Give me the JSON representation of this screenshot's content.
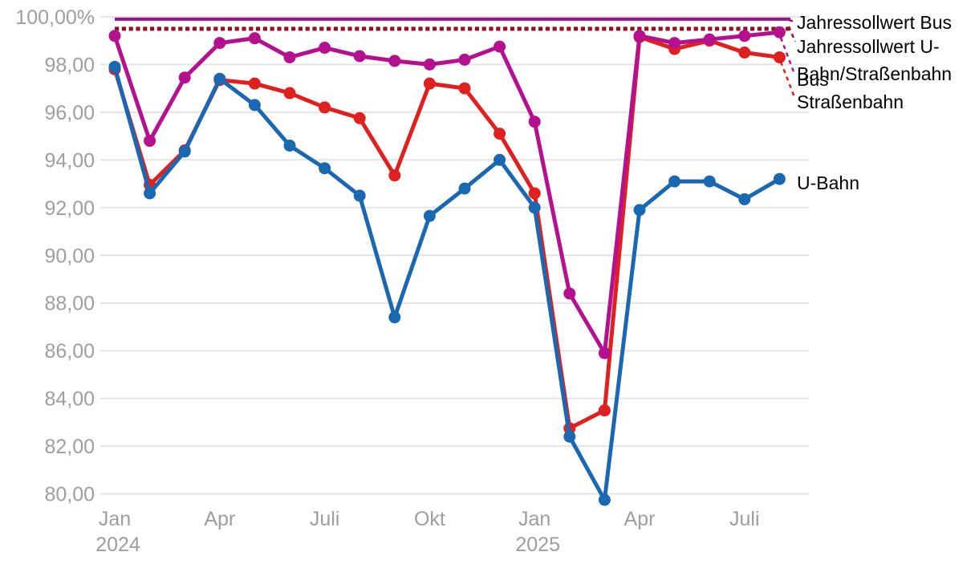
{
  "chart_data": {
    "type": "line",
    "title": "",
    "unit": "%",
    "x": [
      "Jan 2024",
      "Feb 2024",
      "Mär 2024",
      "Apr 2024",
      "Mai 2024",
      "Jun 2024",
      "Jul 2024",
      "Aug 2024",
      "Sep 2024",
      "Okt 2024",
      "Nov 2024",
      "Dez 2024",
      "Jan 2025",
      "Feb 2025",
      "Mär 2025",
      "Apr 2025",
      "Mai 2025",
      "Jun 2025",
      "Jul 2025",
      "Aug 2025"
    ],
    "y_axis": {
      "min": 80,
      "max": 100,
      "step": 2,
      "grid": true,
      "tick_labels": [
        "100,00%",
        "98,00",
        "96,00",
        "94,00",
        "92,00",
        "90,00",
        "88,00",
        "86,00",
        "84,00",
        "82,00",
        "80,00"
      ]
    },
    "x_axis": {
      "ticks": [
        {
          "month_index": 0,
          "line1": "Jan",
          "line2": "2024"
        },
        {
          "month_index": 3,
          "line1": "Apr",
          "line2": ""
        },
        {
          "month_index": 6,
          "line1": "Juli",
          "line2": ""
        },
        {
          "month_index": 9,
          "line1": "Okt",
          "line2": ""
        },
        {
          "month_index": 12,
          "line1": "Jan",
          "line2": "2025"
        },
        {
          "month_index": 15,
          "line1": "Apr",
          "line2": ""
        },
        {
          "month_index": 18,
          "line1": "Juli",
          "line2": ""
        }
      ]
    },
    "series": [
      {
        "name": "Straßenbahn",
        "color": "#e01f1f",
        "values": [
          97.8,
          92.95,
          94.4,
          97.35,
          97.2,
          96.8,
          96.2,
          95.75,
          93.35,
          97.2,
          97.0,
          95.1,
          92.6,
          82.75,
          83.5,
          99.15,
          98.65,
          99.0,
          98.5,
          98.3
        ]
      },
      {
        "name": "U-Bahn",
        "color": "#1a68b2",
        "values": [
          97.9,
          92.6,
          94.35,
          97.4,
          96.3,
          94.6,
          93.65,
          92.5,
          87.4,
          91.65,
          92.8,
          94.0,
          92.0,
          82.4,
          79.75,
          91.9,
          93.1,
          93.1,
          92.35,
          93.2
        ]
      },
      {
        "name": "Bus",
        "color": "#b5108f",
        "values": [
          99.2,
          94.8,
          97.45,
          98.9,
          99.1,
          98.3,
          98.7,
          98.35,
          98.15,
          98.0,
          98.2,
          98.75,
          95.6,
          88.4,
          85.9,
          99.2,
          98.9,
          99.05,
          99.2,
          99.35
        ]
      }
    ],
    "reference_lines": [
      {
        "name": "Jahressollwert Bus",
        "value": 99.9,
        "style": "solid",
        "color": "#941685"
      },
      {
        "name": "Jahressollwert U-Bahn/Straßenbahn",
        "value": 99.7,
        "style": "dotted",
        "color": "#8e1423"
      }
    ],
    "end_labels": [
      {
        "id": "jahressollwert-bus",
        "text": "Jahressollwert Bus",
        "lines": [
          "Jahressollwert Bus"
        ],
        "y": 28,
        "leader_color": "#941685",
        "leader": [
          983,
          25,
          990,
          27
        ]
      },
      {
        "id": "jahressollwert-ubahn-strassenbahn",
        "text": "Jahressollwert U-Bahn/Straßenbahn",
        "lines": [
          "Jahressollwert U-",
          "Bahn/Straßenbahn"
        ],
        "y": 58,
        "leader_color": "#8e1423",
        "leader": [
          983,
          33,
          991,
          52
        ]
      },
      {
        "id": "bus",
        "text": "Bus",
        "lines": [
          "Bus"
        ],
        "y": 99,
        "leader_color": "#b5108f",
        "leader": [
          973,
          47,
          990,
          92
        ]
      },
      {
        "id": "strassenbahn",
        "text": "Straßenbahn",
        "lines": [
          "Straßenbahn"
        ],
        "y": 127,
        "leader_color": "#e01f1f",
        "leader": [
          973,
          77,
          990,
          121
        ]
      },
      {
        "id": "u-bahn",
        "text": "U-Bahn",
        "lines": [
          "U-Bahn"
        ],
        "y": 228,
        "leader_color": null,
        "leader": null
      }
    ],
    "legend_position": "right-end-labels",
    "grid_color": "#e4e4e4",
    "axis_label_color": "#9e9e9e",
    "background_color": "#ffffff"
  }
}
